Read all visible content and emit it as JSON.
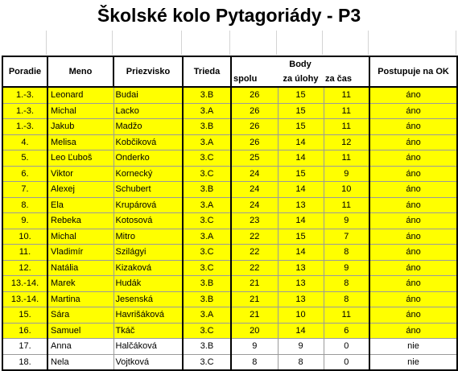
{
  "title": "Školské kolo Pytagoriády - P3",
  "headers": {
    "poradie": "Poradie",
    "meno": "Meno",
    "priezvisko": "Priezvisko",
    "trieda": "Trieda",
    "body": "Body",
    "spolu": "spolu",
    "za_ulohy": "za úlohy",
    "za_cas": "za čas",
    "postupuje": "Postupuje na OK"
  },
  "highlight_color": "#ffff00",
  "rows": [
    {
      "poradie": "1.-3.",
      "meno": "Leonard",
      "priezvisko": "Budai",
      "trieda": "3.B",
      "spolu": "26",
      "za_ulohy": "15",
      "za_cas": "11",
      "postupuje": "áno",
      "highlight": true
    },
    {
      "poradie": "1.-3.",
      "meno": "Michal",
      "priezvisko": "Lacko",
      "trieda": "3.A",
      "spolu": "26",
      "za_ulohy": "15",
      "za_cas": "11",
      "postupuje": "áno",
      "highlight": true
    },
    {
      "poradie": "1.-3.",
      "meno": "Jakub",
      "priezvisko": "Madžo",
      "trieda": "3.B",
      "spolu": "26",
      "za_ulohy": "15",
      "za_cas": "11",
      "postupuje": "áno",
      "highlight": true
    },
    {
      "poradie": "4.",
      "meno": "Melisa",
      "priezvisko": "Kobčiková",
      "trieda": "3.A",
      "spolu": "26",
      "za_ulohy": "14",
      "za_cas": "12",
      "postupuje": "áno",
      "highlight": true
    },
    {
      "poradie": "5.",
      "meno": "Leo Ľuboš",
      "priezvisko": "Onderko",
      "trieda": "3.C",
      "spolu": "25",
      "za_ulohy": "14",
      "za_cas": "11",
      "postupuje": "áno",
      "highlight": true
    },
    {
      "poradie": "6.",
      "meno": "Viktor",
      "priezvisko": "Kornecký",
      "trieda": "3.C",
      "spolu": "24",
      "za_ulohy": "15",
      "za_cas": "9",
      "postupuje": "áno",
      "highlight": true
    },
    {
      "poradie": "7.",
      "meno": "Alexej",
      "priezvisko": "Schubert",
      "trieda": "3.B",
      "spolu": "24",
      "za_ulohy": "14",
      "za_cas": "10",
      "postupuje": "áno",
      "highlight": true
    },
    {
      "poradie": "8.",
      "meno": "Ela",
      "priezvisko": "Krupárová",
      "trieda": "3.A",
      "spolu": "24",
      "za_ulohy": "13",
      "za_cas": "11",
      "postupuje": "áno",
      "highlight": true
    },
    {
      "poradie": "9.",
      "meno": "Rebeka",
      "priezvisko": "Kotosová",
      "trieda": "3.C",
      "spolu": "23",
      "za_ulohy": "14",
      "za_cas": "9",
      "postupuje": "áno",
      "highlight": true
    },
    {
      "poradie": "10.",
      "meno": "Michal",
      "priezvisko": "Mitro",
      "trieda": "3.A",
      "spolu": "22",
      "za_ulohy": "15",
      "za_cas": "7",
      "postupuje": "áno",
      "highlight": true
    },
    {
      "poradie": "11.",
      "meno": "Vladimír",
      "priezvisko": "Szilágyi",
      "trieda": "3.C",
      "spolu": "22",
      "za_ulohy": "14",
      "za_cas": "8",
      "postupuje": "áno",
      "highlight": true
    },
    {
      "poradie": "12.",
      "meno": "Natália",
      "priezvisko": "Kizaková",
      "trieda": "3.C",
      "spolu": "22",
      "za_ulohy": "13",
      "za_cas": "9",
      "postupuje": "áno",
      "highlight": true
    },
    {
      "poradie": "13.-14.",
      "meno": "Marek",
      "priezvisko": "Hudák",
      "trieda": "3.B",
      "spolu": "21",
      "za_ulohy": "13",
      "za_cas": "8",
      "postupuje": "áno",
      "highlight": true
    },
    {
      "poradie": "13.-14.",
      "meno": "Martina",
      "priezvisko": "Jesenská",
      "trieda": "3.B",
      "spolu": "21",
      "za_ulohy": "13",
      "za_cas": "8",
      "postupuje": "áno",
      "highlight": true
    },
    {
      "poradie": "15.",
      "meno": "Sára",
      "priezvisko": "Havrišáková",
      "trieda": "3.A",
      "spolu": "21",
      "za_ulohy": "10",
      "za_cas": "11",
      "postupuje": "áno",
      "highlight": true
    },
    {
      "poradie": "16.",
      "meno": "Samuel",
      "priezvisko": "Tkáč",
      "trieda": "3.C",
      "spolu": "20",
      "za_ulohy": "14",
      "za_cas": "6",
      "postupuje": "áno",
      "highlight": true
    },
    {
      "poradie": "17.",
      "meno": "Anna",
      "priezvisko": "Halčáková",
      "trieda": "3.B",
      "spolu": "9",
      "za_ulohy": "9",
      "za_cas": "0",
      "postupuje": "nie",
      "highlight": false
    },
    {
      "poradie": "18.",
      "meno": "Nela",
      "priezvisko": "Vojtková",
      "trieda": "3.C",
      "spolu": "8",
      "za_ulohy": "8",
      "za_cas": "0",
      "postupuje": "nie",
      "highlight": false
    }
  ]
}
